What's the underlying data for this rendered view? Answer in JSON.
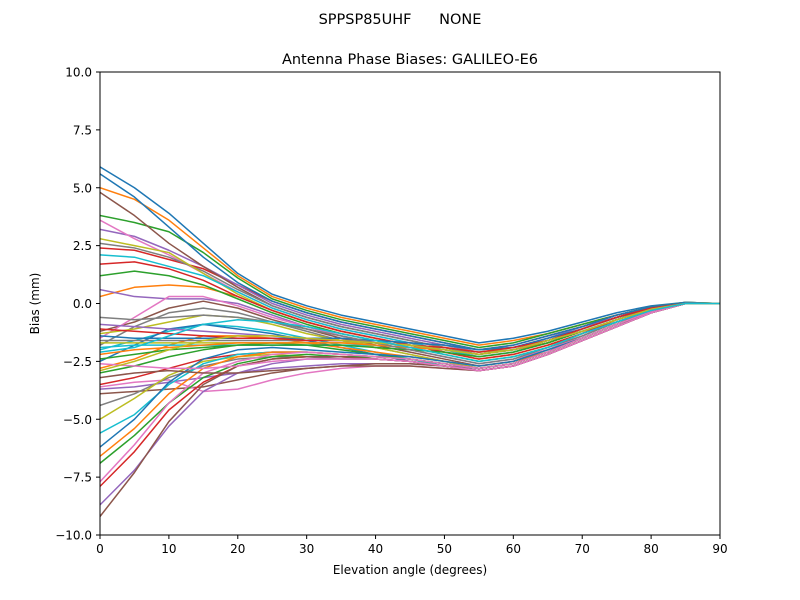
{
  "suptitle": "SPPSP85UHF      NONE",
  "chart_data": {
    "type": "line",
    "title": "Antenna Phase Biases: GALILEO-E6",
    "xlabel": "Elevation angle (degrees)",
    "ylabel": "Bias (mm)",
    "xlim": [
      0,
      90
    ],
    "ylim": [
      -10,
      10
    ],
    "xticks": [
      "0",
      "10",
      "20",
      "30",
      "40",
      "50",
      "60",
      "70",
      "80",
      "90"
    ],
    "yticks": [
      "−10.0",
      "−7.5",
      "−5.0",
      "−2.5",
      "0.0",
      "2.5",
      "5.0",
      "7.5",
      "10.0"
    ],
    "grid": false,
    "legend": "none",
    "palette": [
      "#1f77b4",
      "#ff7f0e",
      "#2ca02c",
      "#d62728",
      "#9467bd",
      "#8c564b",
      "#e377c2",
      "#7f7f7f",
      "#bcbd22",
      "#17becf"
    ],
    "x": [
      0,
      5,
      10,
      15,
      20,
      25,
      30,
      35,
      40,
      45,
      50,
      55,
      60,
      65,
      70,
      75,
      80,
      85,
      90
    ],
    "series": [
      {
        "values": [
          5.9,
          5.0,
          3.9,
          2.6,
          1.3,
          0.4,
          -0.1,
          -0.5,
          -0.8,
          -1.1,
          -1.4,
          -1.7,
          -1.5,
          -1.2,
          -0.8,
          -0.4,
          -0.1,
          0.05,
          0.0
        ]
      },
      {
        "values": [
          5.0,
          4.5,
          3.6,
          2.4,
          1.2,
          0.3,
          -0.2,
          -0.6,
          -0.9,
          -1.2,
          -1.5,
          -1.8,
          -1.6,
          -1.3,
          -0.9,
          -0.5,
          -0.15,
          0.05,
          0.0
        ]
      },
      {
        "values": [
          3.8,
          3.5,
          3.1,
          2.2,
          1.1,
          0.2,
          -0.3,
          -0.7,
          -1.0,
          -1.3,
          -1.6,
          -1.9,
          -1.7,
          -1.3,
          -0.9,
          -0.5,
          -0.15,
          0.05,
          0.0
        ]
      },
      {
        "values": [
          2.4,
          2.3,
          1.9,
          1.5,
          0.8,
          0.1,
          -0.4,
          -0.8,
          -1.1,
          -1.4,
          -1.7,
          -2.0,
          -1.8,
          -1.4,
          -1.0,
          -0.5,
          -0.2,
          0.0,
          0.0
        ]
      },
      {
        "values": [
          3.2,
          2.9,
          2.3,
          1.6,
          0.8,
          0.0,
          -0.5,
          -0.9,
          -1.2,
          -1.5,
          -1.8,
          -2.1,
          -1.9,
          -1.5,
          -1.0,
          -0.6,
          -0.2,
          0.0,
          0.0
        ]
      },
      {
        "values": [
          4.8,
          3.8,
          2.6,
          1.6,
          0.7,
          -0.1,
          -0.6,
          -1.0,
          -1.3,
          -1.6,
          -1.9,
          -2.2,
          -2.0,
          -1.6,
          -1.1,
          -0.6,
          -0.2,
          0.0,
          0.0
        ]
      },
      {
        "values": [
          3.6,
          2.8,
          2.1,
          1.3,
          0.5,
          -0.2,
          -0.7,
          -1.1,
          -1.4,
          -1.7,
          -2.0,
          -2.3,
          -2.1,
          -1.7,
          -1.2,
          -0.7,
          -0.25,
          0.0,
          0.0
        ]
      },
      {
        "values": [
          2.6,
          2.4,
          2.0,
          1.4,
          0.6,
          -0.1,
          -0.6,
          -1.0,
          -1.3,
          -1.6,
          -1.9,
          -2.2,
          -2.0,
          -1.6,
          -1.1,
          -0.6,
          -0.2,
          0.0,
          0.0
        ]
      },
      {
        "values": [
          2.8,
          2.5,
          2.2,
          1.3,
          0.4,
          -0.3,
          -0.8,
          -1.2,
          -1.5,
          -1.8,
          -2.1,
          -2.4,
          -2.2,
          -1.8,
          -1.3,
          -0.7,
          -0.25,
          0.0,
          0.0
        ]
      },
      {
        "values": [
          2.1,
          2.0,
          1.6,
          1.2,
          0.5,
          -0.2,
          -0.7,
          -1.1,
          -1.4,
          -1.7,
          -2.0,
          -2.3,
          -2.1,
          -1.7,
          -1.2,
          -0.7,
          -0.2,
          0.0,
          0.0
        ]
      },
      {
        "values": [
          5.6,
          4.6,
          3.3,
          2.0,
          0.9,
          0.1,
          -0.4,
          -0.8,
          -1.1,
          -1.4,
          -1.7,
          -2.0,
          -1.8,
          -1.4,
          -1.0,
          -0.5,
          -0.15,
          0.05,
          0.0
        ]
      },
      {
        "values": [
          0.3,
          0.7,
          0.8,
          0.7,
          0.3,
          -0.3,
          -0.8,
          -1.2,
          -1.5,
          -1.8,
          -2.1,
          -2.4,
          -2.2,
          -1.8,
          -1.3,
          -0.7,
          -0.25,
          0.0,
          0.0
        ]
      },
      {
        "values": [
          1.2,
          1.4,
          1.2,
          0.8,
          0.2,
          -0.4,
          -0.9,
          -1.3,
          -1.6,
          -1.9,
          -2.2,
          -2.5,
          -2.3,
          -1.9,
          -1.3,
          -0.8,
          -0.3,
          0.0,
          0.0
        ]
      },
      {
        "values": [
          1.7,
          1.8,
          1.5,
          1.0,
          0.3,
          -0.3,
          -0.8,
          -1.2,
          -1.5,
          -1.8,
          -2.1,
          -2.4,
          -2.2,
          -1.8,
          -1.3,
          -0.7,
          -0.25,
          0.0,
          0.0
        ]
      },
      {
        "values": [
          0.6,
          0.3,
          0.2,
          0.2,
          0.0,
          -0.5,
          -1.0,
          -1.4,
          -1.7,
          -2.0,
          -2.3,
          -2.6,
          -2.4,
          -2.0,
          -1.4,
          -0.8,
          -0.3,
          0.0,
          0.0
        ]
      },
      {
        "values": [
          -1.2,
          -0.8,
          -0.2,
          0.1,
          -0.2,
          -0.7,
          -1.1,
          -1.5,
          -1.8,
          -2.1,
          -2.4,
          -2.7,
          -2.5,
          -2.0,
          -1.5,
          -0.9,
          -0.3,
          0.0,
          0.0
        ]
      },
      {
        "values": [
          -1.5,
          -0.6,
          0.3,
          0.3,
          -0.1,
          -0.6,
          -1.0,
          -1.4,
          -1.7,
          -2.0,
          -2.3,
          -2.6,
          -2.4,
          -2.0,
          -1.4,
          -0.8,
          -0.3,
          0.0,
          0.0
        ]
      },
      {
        "values": [
          -1.8,
          -1.0,
          -0.4,
          -0.2,
          -0.4,
          -0.8,
          -1.2,
          -1.6,
          -1.9,
          -2.2,
          -2.5,
          -2.8,
          -2.6,
          -2.1,
          -1.5,
          -0.9,
          -0.35,
          0.0,
          0.0
        ]
      },
      {
        "values": [
          -1.3,
          -1.1,
          -0.8,
          -0.5,
          -0.6,
          -0.9,
          -1.3,
          -1.6,
          -1.9,
          -2.2,
          -2.5,
          -2.8,
          -2.6,
          -2.1,
          -1.5,
          -0.9,
          -0.35,
          0.0,
          0.0
        ]
      },
      {
        "values": [
          -2.0,
          -1.6,
          -1.2,
          -0.9,
          -1.0,
          -1.2,
          -1.5,
          -1.8,
          -2.1,
          -2.4,
          -2.7,
          -2.9,
          -2.7,
          -2.2,
          -1.6,
          -1.0,
          -0.4,
          0.0,
          0.0
        ]
      },
      {
        "values": [
          -2.5,
          -1.8,
          -1.1,
          -0.9,
          -1.1,
          -1.3,
          -1.6,
          -1.9,
          -2.2,
          -2.5,
          -2.7,
          -2.9,
          -2.7,
          -2.2,
          -1.6,
          -1.0,
          -0.4,
          0.0,
          0.0
        ]
      },
      {
        "values": [
          -2.8,
          -2.4,
          -1.8,
          -1.4,
          -1.4,
          -1.5,
          -1.7,
          -1.9,
          -2.1,
          -2.3,
          -2.5,
          -2.7,
          -2.5,
          -2.1,
          -1.5,
          -0.9,
          -0.35,
          0.0,
          0.0
        ]
      },
      {
        "values": [
          -3.0,
          -2.7,
          -2.3,
          -2.0,
          -1.8,
          -1.7,
          -1.8,
          -2.0,
          -2.2,
          -2.4,
          -2.6,
          -2.8,
          -2.6,
          -2.1,
          -1.5,
          -0.9,
          -0.35,
          0.0,
          0.0
        ]
      },
      {
        "values": [
          -3.5,
          -3.2,
          -2.8,
          -2.4,
          -2.2,
          -2.1,
          -2.1,
          -2.2,
          -2.3,
          -2.4,
          -2.6,
          -2.8,
          -2.6,
          -2.1,
          -1.5,
          -0.9,
          -0.35,
          0.0,
          0.0
        ]
      },
      {
        "values": [
          -3.7,
          -3.6,
          -3.4,
          -3.2,
          -3.0,
          -2.8,
          -2.7,
          -2.6,
          -2.6,
          -2.6,
          -2.7,
          -2.8,
          -2.6,
          -2.1,
          -1.5,
          -0.9,
          -0.35,
          0.0,
          0.0
        ]
      },
      {
        "values": [
          -3.9,
          -3.8,
          -3.7,
          -3.6,
          -3.3,
          -3.0,
          -2.8,
          -2.7,
          -2.6,
          -2.6,
          -2.7,
          -2.9,
          -2.7,
          -2.2,
          -1.6,
          -1.0,
          -0.4,
          0.0,
          0.0
        ]
      },
      {
        "values": [
          -3.6,
          -3.4,
          -3.3,
          -3.8,
          -3.7,
          -3.3,
          -3.0,
          -2.8,
          -2.7,
          -2.7,
          -2.8,
          -2.9,
          -2.7,
          -2.2,
          -1.6,
          -1.0,
          -0.4,
          0.0,
          0.0
        ]
      },
      {
        "values": [
          -4.4,
          -3.9,
          -3.2,
          -2.7,
          -2.4,
          -2.3,
          -2.3,
          -2.4,
          -2.4,
          -2.5,
          -2.7,
          -2.9,
          -2.7,
          -2.2,
          -1.6,
          -1.0,
          -0.4,
          0.0,
          0.0
        ]
      },
      {
        "values": [
          -5.0,
          -4.1,
          -3.1,
          -2.5,
          -2.3,
          -2.2,
          -2.3,
          -2.3,
          -2.4,
          -2.5,
          -2.7,
          -2.9,
          -2.7,
          -2.2,
          -1.6,
          -1.0,
          -0.4,
          0.0,
          0.0
        ]
      },
      {
        "values": [
          -5.6,
          -4.8,
          -3.5,
          -2.6,
          -2.2,
          -2.1,
          -2.1,
          -2.2,
          -2.3,
          -2.4,
          -2.6,
          -2.8,
          -2.6,
          -2.1,
          -1.5,
          -0.9,
          -0.35,
          0.0,
          0.0
        ]
      },
      {
        "values": [
          -6.2,
          -5.0,
          -3.4,
          -2.4,
          -2.0,
          -1.9,
          -2.0,
          -2.1,
          -2.2,
          -2.3,
          -2.5,
          -2.7,
          -2.5,
          -2.0,
          -1.5,
          -0.9,
          -0.35,
          0.0,
          0.0
        ]
      },
      {
        "values": [
          -6.6,
          -5.4,
          -3.9,
          -2.8,
          -2.3,
          -2.1,
          -2.1,
          -2.2,
          -2.3,
          -2.4,
          -2.6,
          -2.8,
          -2.6,
          -2.1,
          -1.5,
          -0.9,
          -0.35,
          0.0,
          0.0
        ]
      },
      {
        "values": [
          -6.9,
          -5.7,
          -4.3,
          -3.2,
          -2.6,
          -2.3,
          -2.2,
          -2.3,
          -2.3,
          -2.4,
          -2.6,
          -2.8,
          -2.6,
          -2.1,
          -1.5,
          -0.9,
          -0.35,
          0.0,
          0.0
        ]
      },
      {
        "values": [
          -7.9,
          -6.4,
          -4.6,
          -3.4,
          -2.7,
          -2.4,
          -2.3,
          -2.3,
          -2.4,
          -2.5,
          -2.7,
          -2.9,
          -2.7,
          -2.2,
          -1.6,
          -1.0,
          -0.4,
          0.0,
          0.0
        ]
      },
      {
        "values": [
          -8.7,
          -7.2,
          -5.3,
          -3.8,
          -3.0,
          -2.6,
          -2.4,
          -2.4,
          -2.4,
          -2.5,
          -2.7,
          -2.9,
          -2.7,
          -2.2,
          -1.6,
          -1.0,
          -0.4,
          0.0,
          0.0
        ]
      },
      {
        "values": [
          -9.2,
          -7.3,
          -5.1,
          -3.5,
          -2.7,
          -2.4,
          -2.3,
          -2.3,
          -2.4,
          -2.5,
          -2.7,
          -2.9,
          -2.7,
          -2.2,
          -1.6,
          -1.0,
          -0.4,
          0.0,
          0.0
        ]
      },
      {
        "values": [
          -7.7,
          -6.1,
          -4.3,
          -3.0,
          -2.5,
          -2.2,
          -2.1,
          -2.2,
          -2.3,
          -2.4,
          -2.6,
          -2.8,
          -2.6,
          -2.1,
          -1.5,
          -0.9,
          -0.35,
          0.0,
          0.0
        ]
      },
      {
        "values": [
          -1.6,
          -1.6,
          -1.6,
          -1.6,
          -1.6,
          -1.6,
          -1.6,
          -1.6,
          -1.6,
          -1.7,
          -1.8,
          -2.0,
          -1.9,
          -1.6,
          -1.1,
          -0.6,
          -0.2,
          0.0,
          0.0
        ]
      },
      {
        "values": [
          -1.7,
          -1.7,
          -1.7,
          -1.7,
          -1.7,
          -1.7,
          -1.7,
          -1.7,
          -1.7,
          -1.8,
          -1.9,
          -2.1,
          -2.0,
          -1.6,
          -1.2,
          -0.7,
          -0.25,
          0.0,
          0.0
        ]
      },
      {
        "values": [
          -1.9,
          -1.8,
          -1.8,
          -1.8,
          -1.8,
          -1.8,
          -1.8,
          -1.8,
          -1.8,
          -1.9,
          -2.0,
          -2.2,
          -2.0,
          -1.7,
          -1.2,
          -0.7,
          -0.25,
          0.0,
          0.0
        ]
      },
      {
        "values": [
          -1.4,
          -1.5,
          -1.5,
          -1.5,
          -1.5,
          -1.5,
          -1.5,
          -1.5,
          -1.6,
          -1.7,
          -1.8,
          -2.0,
          -1.9,
          -1.5,
          -1.1,
          -0.6,
          -0.2,
          0.0,
          0.0
        ]
      },
      {
        "values": [
          -2.2,
          -2.0,
          -1.9,
          -1.8,
          -1.7,
          -1.7,
          -1.7,
          -1.7,
          -1.8,
          -1.9,
          -2.0,
          -2.2,
          -2.0,
          -1.7,
          -1.2,
          -0.7,
          -0.25,
          0.0,
          0.0
        ]
      },
      {
        "values": [
          -2.4,
          -2.2,
          -2.0,
          -1.9,
          -1.8,
          -1.8,
          -1.8,
          -1.8,
          -1.9,
          -2.0,
          -2.1,
          -2.3,
          -2.1,
          -1.7,
          -1.2,
          -0.7,
          -0.25,
          0.0,
          0.0
        ]
      },
      {
        "values": [
          -1.1,
          -1.2,
          -1.3,
          -1.4,
          -1.5,
          -1.5,
          -1.6,
          -1.6,
          -1.7,
          -1.8,
          -1.9,
          -2.1,
          -1.9,
          -1.6,
          -1.1,
          -0.6,
          -0.2,
          0.0,
          0.0
        ]
      },
      {
        "values": [
          -0.9,
          -1.0,
          -1.1,
          -1.2,
          -1.3,
          -1.4,
          -1.5,
          -1.6,
          -1.7,
          -1.8,
          -2.0,
          -2.2,
          -2.0,
          -1.6,
          -1.2,
          -0.7,
          -0.25,
          0.0,
          0.0
        ]
      },
      {
        "values": [
          -3.2,
          -3.0,
          -2.9,
          -3.0,
          -3.0,
          -2.9,
          -2.8,
          -2.7,
          -2.7,
          -2.7,
          -2.8,
          -2.9,
          -2.7,
          -2.2,
          -1.6,
          -1.0,
          -0.4,
          0.0,
          0.0
        ]
      },
      {
        "values": [
          -2.6,
          -2.7,
          -2.8,
          -2.8,
          -2.7,
          -2.5,
          -2.4,
          -2.4,
          -2.4,
          -2.5,
          -2.7,
          -2.9,
          -2.7,
          -2.2,
          -1.6,
          -1.0,
          -0.4,
          0.0,
          0.0
        ]
      },
      {
        "values": [
          -0.6,
          -0.7,
          -0.6,
          -0.5,
          -0.6,
          -0.8,
          -1.1,
          -1.4,
          -1.7,
          -2.0,
          -2.3,
          -2.6,
          -2.4,
          -1.9,
          -1.4,
          -0.8,
          -0.3,
          0.0,
          0.0
        ]
      },
      {
        "values": [
          -2.9,
          -2.5,
          -2.0,
          -1.6,
          -1.4,
          -1.4,
          -1.5,
          -1.6,
          -1.7,
          -1.8,
          -2.0,
          -2.2,
          -2.0,
          -1.6,
          -1.2,
          -0.7,
          -0.25,
          0.0,
          0.0
        ]
      },
      {
        "values": [
          -2.1,
          -1.9,
          -1.4,
          -0.9,
          -0.7,
          -0.8,
          -1.0,
          -1.3,
          -1.6,
          -1.9,
          -2.2,
          -2.5,
          -2.3,
          -1.9,
          -1.3,
          -0.8,
          -0.3,
          0.0,
          0.0
        ]
      }
    ]
  }
}
